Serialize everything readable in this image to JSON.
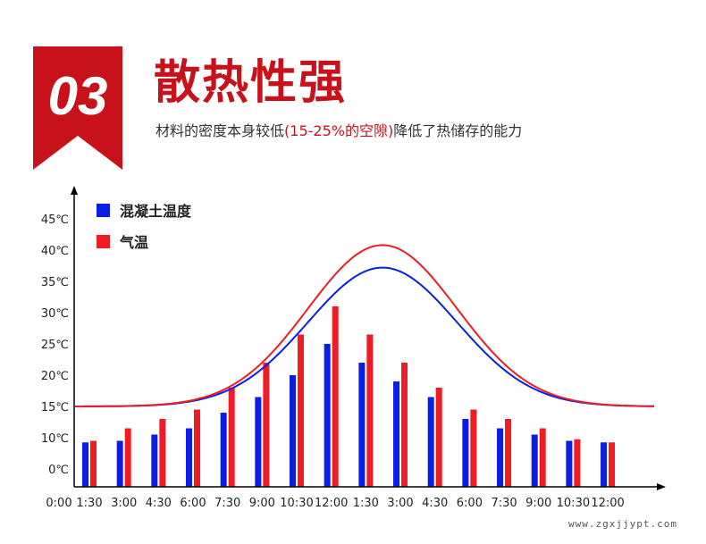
{
  "section": {
    "number": "03",
    "title": "散热性强",
    "description_before": "材料的密度本身较低",
    "description_highlight": "(15-25%的空隙)",
    "description_after": "降低了热储存的能力"
  },
  "colors": {
    "badge_red": "#c8121b",
    "title_red": "#c8121b",
    "concrete_blue": "#0a1ee6",
    "air_red": "#ee1c25"
  },
  "watermark": "www.zgxjjypt.com",
  "chart_data": {
    "type": "bar",
    "origin_label": "0:00",
    "categories": [
      "1:30",
      "3:00",
      "4:30",
      "6:00",
      "7:30",
      "9:00",
      "10:30",
      "12:00",
      "1:30",
      "3:00",
      "4:30",
      "6:00",
      "7:30",
      "9:00",
      "10:30",
      "12:00"
    ],
    "yticks": [
      "0℃",
      "10℃",
      "15℃",
      "20℃",
      "25℃",
      "30℃",
      "35℃",
      "40℃",
      "45℃"
    ],
    "legend": [
      {
        "name": "混凝土温度",
        "color": "#0a1ee6"
      },
      {
        "name": "气温",
        "color": "#ee1c25"
      }
    ],
    "series": [
      {
        "name": "混凝土温度",
        "color": "#0a1ee6",
        "values": [
          8.5,
          9,
          10.5,
          11.5,
          14,
          16.5,
          20,
          25,
          22,
          19,
          16.5,
          13,
          11.5,
          10.5,
          9,
          8.5
        ]
      },
      {
        "name": "气温",
        "color": "#ee1c25",
        "values": [
          9,
          11.5,
          13,
          14.5,
          18,
          22,
          26.5,
          31,
          26.5,
          22,
          18,
          14.5,
          13,
          11.5,
          9.5,
          8.5
        ]
      }
    ],
    "curves": [
      {
        "name": "混凝土温度",
        "color": "#0a1ee6",
        "baseline": 15,
        "peak": 37.2
      },
      {
        "name": "气温",
        "color": "#ee1c25",
        "baseline": 15,
        "peak": 40.8
      }
    ],
    "legend_position": "top-left",
    "grid": false
  }
}
